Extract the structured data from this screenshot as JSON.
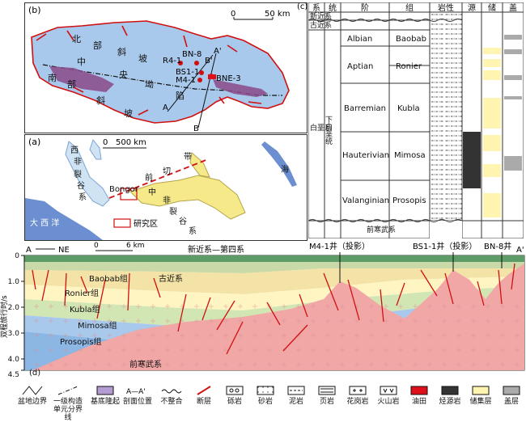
{
  "panel_b": {
    "label": "(b)",
    "scale_text": "50 km",
    "scale_zero": "0",
    "wells": [
      "BN-8",
      "R4-1",
      "BS1-1",
      "M4-1",
      "BNE-3"
    ],
    "section_a": "A",
    "section_a2": "A'",
    "section_b": "B",
    "section_b2": "B'",
    "chars_north": [
      "北",
      "部",
      "斜",
      "坡"
    ],
    "chars_mid": [
      "中",
      "央",
      "坳",
      "陷"
    ],
    "chars_south": [
      "南",
      "部",
      "斜",
      "坡"
    ]
  },
  "panel_a": {
    "label": "(a)",
    "scale_text": "500 km",
    "scale_zero": "0",
    "labels": {
      "west": [
        "西",
        "非",
        "裂",
        "谷",
        "系"
      ],
      "center": [
        "中",
        "非",
        "裂",
        "谷",
        "系"
      ],
      "bongor": "Bongor",
      "front": "前",
      "cut": "切",
      "band": "带",
      "sea": "海",
      "ocean": "大 西 洋",
      "study_area": "研究区"
    }
  },
  "panel_c": {
    "label": "(c)",
    "headers": [
      "系",
      "统",
      "阶",
      "组",
      "岩性",
      "源",
      "储",
      "盖"
    ],
    "systems": [
      "新近系",
      "古近系",
      "白垩系",
      "前寒武系"
    ],
    "series_lower": "下白垩统",
    "stages": [
      "Albian",
      "Aptian",
      "Barremian",
      "Hauterivian",
      "Valanginian"
    ],
    "formations": [
      "Baobab",
      "Ronier",
      "Kubla",
      "Mimosa",
      "Prosopis"
    ]
  },
  "panel_d": {
    "label": "(d)",
    "end_a": "A",
    "end_a2": "A'",
    "direction": "NE",
    "scale_zero": "0",
    "scale_text": "6 km",
    "top_label": "新近系—第四系",
    "paleogene": "古近系",
    "basement": "前寒武系",
    "wells": [
      "M4-1井（投影）",
      "BS1-1井（投影）",
      "BN-8井"
    ],
    "formations": [
      "Baobab组",
      "Ronier组",
      "Kubla组",
      "Mimosa组",
      "Prosopis组"
    ],
    "y_axis_title": "双程旅行时/s",
    "y_ticks": [
      "0",
      "1.0",
      "2.0",
      "3.0",
      "4.0",
      "4.5"
    ]
  },
  "legend": [
    {
      "key": "basin",
      "label": "盆地边界"
    },
    {
      "key": "unit",
      "label": "一级构造单元分界线"
    },
    {
      "key": "uplift",
      "label": "基底隆起"
    },
    {
      "key": "section",
      "label": "剖面位置",
      "symbol": "A—A'"
    },
    {
      "key": "unconformity",
      "label": "不整合"
    },
    {
      "key": "fault",
      "label": "断层"
    },
    {
      "key": "conglomerate",
      "label": "砾岩"
    },
    {
      "key": "sandstone",
      "label": "砂岩"
    },
    {
      "key": "mudstone",
      "label": "泥岩"
    },
    {
      "key": "shale",
      "label": "页岩"
    },
    {
      "key": "granite",
      "label": "花岗岩"
    },
    {
      "key": "volcanic",
      "label": "火山岩"
    },
    {
      "key": "oilfield",
      "label": "油田"
    },
    {
      "key": "source",
      "label": "烃源岩"
    },
    {
      "key": "reservoir",
      "label": "储集层"
    },
    {
      "key": "cap",
      "label": "盖层"
    }
  ],
  "colors": {
    "basin_blue": "#a9c9ec",
    "basement_pink": "#f0a7a6",
    "oil_red": "#e0101a",
    "reservoir_yellow": "#fff5b0",
    "source_black": "#333333",
    "cap_gray": "#aaaaaa"
  }
}
